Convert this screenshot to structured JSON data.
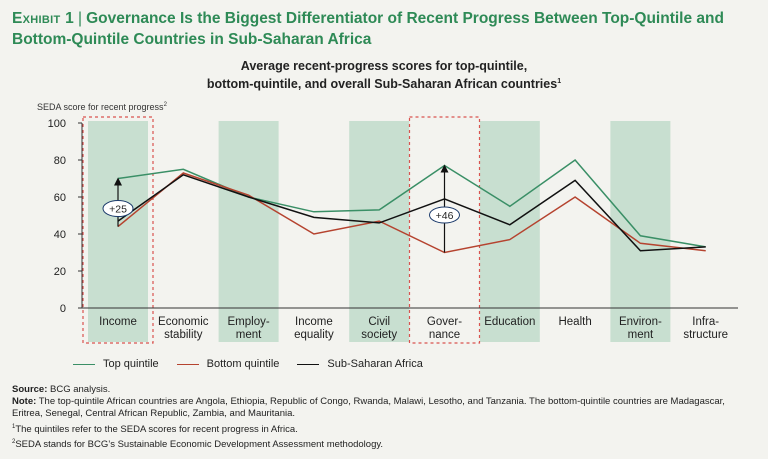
{
  "exhibit": {
    "label": "Exhibit 1",
    "title": "Governance Is the Biggest Differentiator of Recent Progress Between Top-Quintile and Bottom-Quintile Countries in Sub-Saharan Africa"
  },
  "chart_data": {
    "type": "line",
    "title_line1": "Average recent-progress scores for top-quintile,",
    "title_line2": "bottom-quintile, and overall Sub-Saharan African countries",
    "title_note": "1",
    "ylabel": "SEDA score for recent progress",
    "ylabel_note": "2",
    "ylim": [
      0,
      100
    ],
    "yticks": [
      "0",
      "20",
      "40",
      "60",
      "80",
      "100"
    ],
    "categories": [
      [
        "Income"
      ],
      [
        "Economic",
        "stability"
      ],
      [
        "Employ-",
        "ment"
      ],
      [
        "Income",
        "equality"
      ],
      [
        "Civil",
        "society"
      ],
      [
        "Gover-",
        "nance"
      ],
      [
        "Education"
      ],
      [
        "Health"
      ],
      [
        "Environ-",
        "ment"
      ],
      [
        "Infra-",
        "structure"
      ]
    ],
    "shaded_band_indices": [
      0,
      2,
      4,
      6,
      8
    ],
    "highlighted_indices": [
      0,
      5
    ],
    "series": [
      {
        "name": "Top quintile",
        "color": "#3a8f66",
        "values": [
          70,
          75,
          60,
          52,
          53,
          77,
          55,
          80,
          39,
          33
        ]
      },
      {
        "name": "Bottom quintile",
        "color": "#b5432f",
        "values": [
          44,
          73,
          61,
          40,
          47,
          30,
          37,
          60,
          35,
          31
        ]
      },
      {
        "name": "Sub-Saharan Africa",
        "color": "#111111",
        "values": [
          47,
          72,
          60,
          49,
          46,
          59,
          45,
          69,
          31,
          33
        ]
      }
    ],
    "annotations": [
      {
        "category_index": 0,
        "label": "+25",
        "from": 44,
        "to": 70
      },
      {
        "category_index": 5,
        "label": "+46",
        "from": 30,
        "to": 77
      }
    ]
  },
  "notes": {
    "source_label": "Source:",
    "source_text": "BCG analysis.",
    "note_label": "Note:",
    "note_text": "The top-quintile African countries are Angola, Ethiopia, Republic of Congo, Rwanda, Malawi, Lesotho, and Tanzania. The bottom-quintile countries are Madagascar, Eritrea, Senegal, Central African Republic, Zambia, and Mauritania.",
    "footnote1_mark": "1",
    "footnote1": "The quintiles refer to the SEDA scores for recent progress in Africa.",
    "footnote2_mark": "2",
    "footnote2": "SEDA stands for BCG’s Sustainable Economic Development Assessment methodology."
  },
  "colors": {
    "band": "#c8dfd0",
    "highlight_border": "#d9534f",
    "accent": "#2e8a56",
    "annotation": "#1b3a6b"
  }
}
